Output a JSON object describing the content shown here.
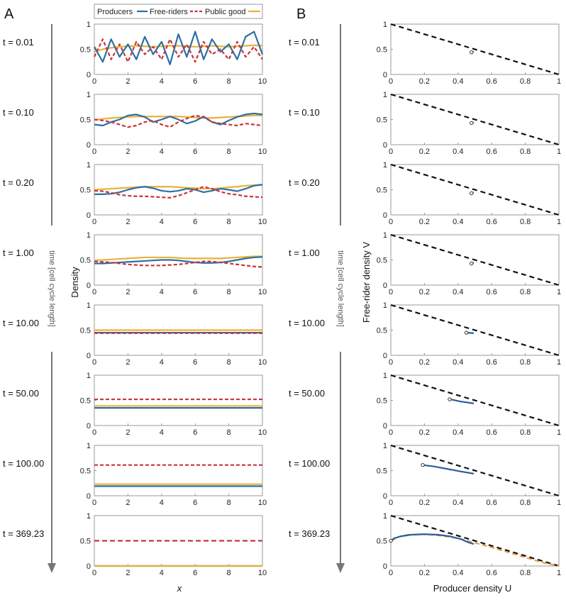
{
  "panel_labels": {
    "a": "A",
    "b": "B"
  },
  "time_axis_label": "time [cell cycle length]",
  "legend": {
    "producers": "Producers",
    "free_riders": "Free-riders",
    "public_good": "Public good"
  },
  "colors": {
    "producers": "#2b6fa6",
    "free_riders": "#c8343b",
    "public_good": "#e9b13a",
    "limit": "#111111",
    "trajectory": "#2e5c9c",
    "orange": "#e89a3c"
  },
  "chart_data": [
    {
      "type": "line",
      "panel": "A",
      "xlabel": "x",
      "ylabel": "Density",
      "xlim": [
        0,
        10
      ],
      "ylim": [
        0,
        1
      ],
      "x_ticks": [
        "0",
        "2",
        "4",
        "6",
        "8",
        "10"
      ],
      "y_ticks": [
        "0",
        "0.5",
        "1"
      ],
      "time_labels": [
        "t = 0.01",
        "t = 0.10",
        "t = 0.20",
        "t = 1.00",
        "t = 10.00",
        "t = 50.00",
        "t = 100.00",
        "t = 369.23"
      ],
      "x": [
        0,
        0.5,
        1,
        1.5,
        2,
        2.5,
        3,
        3.5,
        4,
        4.5,
        5,
        5.5,
        6,
        6.5,
        7,
        7.5,
        8,
        8.5,
        9,
        9.5,
        10
      ],
      "snapshots": [
        {
          "producers": [
            0.55,
            0.25,
            0.7,
            0.35,
            0.6,
            0.3,
            0.75,
            0.4,
            0.65,
            0.2,
            0.8,
            0.35,
            0.85,
            0.3,
            0.7,
            0.45,
            0.6,
            0.3,
            0.75,
            0.85,
            0.4
          ],
          "free_riders": [
            0.35,
            0.7,
            0.3,
            0.6,
            0.25,
            0.65,
            0.4,
            0.55,
            0.3,
            0.7,
            0.35,
            0.6,
            0.25,
            0.65,
            0.4,
            0.5,
            0.3,
            0.65,
            0.35,
            0.55,
            0.3
          ],
          "public_good": [
            0.45,
            0.5,
            0.53,
            0.55,
            0.56,
            0.57,
            0.56,
            0.55,
            0.56,
            0.57,
            0.57,
            0.56,
            0.55,
            0.56,
            0.57,
            0.56,
            0.55,
            0.56,
            0.57,
            0.58,
            0.57
          ]
        },
        {
          "producers": [
            0.4,
            0.38,
            0.45,
            0.5,
            0.58,
            0.6,
            0.55,
            0.45,
            0.5,
            0.56,
            0.5,
            0.42,
            0.47,
            0.56,
            0.45,
            0.4,
            0.48,
            0.55,
            0.6,
            0.62,
            0.6
          ],
          "free_riders": [
            0.5,
            0.48,
            0.45,
            0.4,
            0.35,
            0.38,
            0.45,
            0.48,
            0.4,
            0.35,
            0.45,
            0.52,
            0.58,
            0.55,
            0.45,
            0.42,
            0.4,
            0.38,
            0.42,
            0.4,
            0.38
          ],
          "public_good": [
            0.49,
            0.51,
            0.53,
            0.54,
            0.55,
            0.56,
            0.56,
            0.56,
            0.56,
            0.56,
            0.56,
            0.55,
            0.54,
            0.53,
            0.53,
            0.54,
            0.55,
            0.56,
            0.57,
            0.58,
            0.58
          ]
        },
        {
          "producers": [
            0.41,
            0.41,
            0.42,
            0.45,
            0.5,
            0.54,
            0.56,
            0.53,
            0.48,
            0.46,
            0.48,
            0.52,
            0.5,
            0.45,
            0.48,
            0.52,
            0.5,
            0.47,
            0.52,
            0.58,
            0.6
          ],
          "free_riders": [
            0.48,
            0.47,
            0.44,
            0.4,
            0.38,
            0.37,
            0.37,
            0.36,
            0.35,
            0.34,
            0.38,
            0.44,
            0.5,
            0.56,
            0.52,
            0.46,
            0.42,
            0.4,
            0.37,
            0.36,
            0.35
          ],
          "public_good": [
            0.5,
            0.51,
            0.52,
            0.53,
            0.54,
            0.55,
            0.56,
            0.56,
            0.56,
            0.56,
            0.55,
            0.54,
            0.53,
            0.52,
            0.52,
            0.53,
            0.55,
            0.56,
            0.58,
            0.59,
            0.6
          ]
        },
        {
          "producers": [
            0.43,
            0.43,
            0.44,
            0.45,
            0.46,
            0.47,
            0.48,
            0.49,
            0.5,
            0.5,
            0.49,
            0.47,
            0.45,
            0.44,
            0.44,
            0.45,
            0.47,
            0.5,
            0.53,
            0.55,
            0.56
          ],
          "free_riders": [
            0.47,
            0.46,
            0.45,
            0.43,
            0.41,
            0.4,
            0.39,
            0.39,
            0.39,
            0.4,
            0.41,
            0.43,
            0.45,
            0.47,
            0.47,
            0.45,
            0.43,
            0.41,
            0.39,
            0.37,
            0.36
          ],
          "public_good": [
            0.49,
            0.5,
            0.51,
            0.52,
            0.53,
            0.54,
            0.55,
            0.55,
            0.55,
            0.55,
            0.54,
            0.53,
            0.53,
            0.53,
            0.53,
            0.53,
            0.54,
            0.55,
            0.56,
            0.57,
            0.57
          ]
        },
        {
          "producers": 0.45,
          "free_riders": 0.44,
          "public_good": 0.5
        },
        {
          "producers": 0.35,
          "free_riders": 0.52,
          "public_good": 0.39
        },
        {
          "producers": 0.19,
          "free_riders": 0.61,
          "public_good": 0.23
        },
        {
          "producers": 0.0,
          "free_riders": 0.5,
          "public_good": 0.0
        }
      ]
    },
    {
      "type": "line",
      "panel": "B",
      "xlabel": "Producer density U",
      "ylabel": "Free-rider density V",
      "xlim": [
        0,
        1
      ],
      "ylim": [
        0,
        1
      ],
      "x_ticks": [
        "0",
        "0.2",
        "0.4",
        "0.6",
        "0.8",
        "1"
      ],
      "y_ticks": [
        "0",
        "0.5",
        "1"
      ],
      "time_labels": [
        "t = 0.01",
        "t = 0.10",
        "t = 0.20",
        "t = 1.00",
        "t = 10.00",
        "t = 50.00",
        "t = 100.00",
        "t = 369.23"
      ],
      "boundary_line": {
        "U": [
          0,
          1
        ],
        "V": [
          1,
          0
        ]
      },
      "trajectories": [
        {
          "U": [
            0.49,
            0.48
          ],
          "V": [
            0.45,
            0.44
          ]
        },
        {
          "U": [
            0.49,
            0.48
          ],
          "V": [
            0.44,
            0.43
          ]
        },
        {
          "U": [
            0.49,
            0.48
          ],
          "V": [
            0.44,
            0.43
          ]
        },
        {
          "U": [
            0.49,
            0.48
          ],
          "V": [
            0.44,
            0.43
          ]
        },
        {
          "U": [
            0.49,
            0.47,
            0.45
          ],
          "V": [
            0.44,
            0.445,
            0.45
          ]
        },
        {
          "U": [
            0.49,
            0.45,
            0.41,
            0.37,
            0.35
          ],
          "V": [
            0.44,
            0.46,
            0.48,
            0.51,
            0.52
          ]
        },
        {
          "U": [
            0.49,
            0.42,
            0.34,
            0.26,
            0.19
          ],
          "V": [
            0.44,
            0.48,
            0.53,
            0.58,
            0.61
          ]
        },
        {
          "U": [
            0.49,
            0.46,
            0.42,
            0.35,
            0.28,
            0.2,
            0.12,
            0.06,
            0.02,
            0.0
          ],
          "V": [
            0.44,
            0.47,
            0.53,
            0.59,
            0.62,
            0.63,
            0.62,
            0.59,
            0.55,
            0.5
          ]
        }
      ],
      "orange_dashed": {
        "U": [
          0.0,
          0.05,
          0.1,
          0.2,
          0.3,
          0.4,
          0.5,
          0.6,
          0.7,
          0.8,
          0.9,
          1.0
        ],
        "V": [
          0.5,
          0.58,
          0.62,
          0.63,
          0.6,
          0.55,
          0.46,
          0.37,
          0.27,
          0.17,
          0.07,
          0.0
        ]
      }
    }
  ]
}
